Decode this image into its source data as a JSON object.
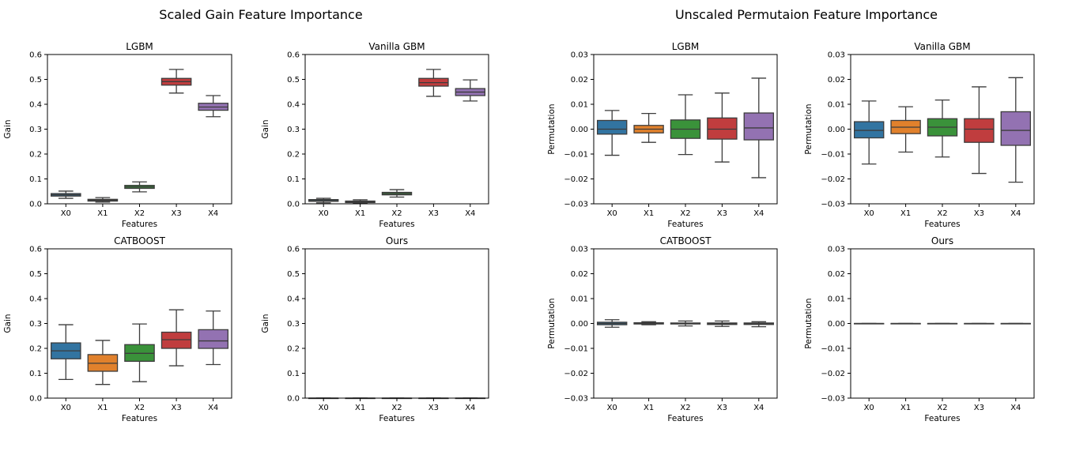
{
  "figure": {
    "suptitles": [
      "Scaled Gain Feature Importance",
      "Unscaled Permutaion Feature Importance"
    ]
  },
  "colors": {
    "X0": "#3274a1",
    "X1": "#e1812c",
    "X2": "#3a923a",
    "X3": "#c03d3e",
    "X4": "#9372b2",
    "median_line": "#3c3c3c"
  },
  "chart_data": [
    {
      "type": "box",
      "title": "LGBM",
      "xlabel": "Features",
      "ylabel": "Gain",
      "ylim": [
        0,
        0.6
      ],
      "yticks": [
        "0.0",
        "0.1",
        "0.2",
        "0.3",
        "0.4",
        "0.5",
        "0.6"
      ],
      "ytick_values": [
        0,
        0.1,
        0.2,
        0.3,
        0.4,
        0.5,
        0.6
      ],
      "categories": [
        "X0",
        "X1",
        "X2",
        "X3",
        "X4"
      ],
      "boxes": [
        {
          "min": 0.022,
          "q1": 0.031,
          "median": 0.036,
          "q3": 0.041,
          "max": 0.051
        },
        {
          "min": 0.007,
          "q1": 0.011,
          "median": 0.014,
          "q3": 0.018,
          "max": 0.025
        },
        {
          "min": 0.048,
          "q1": 0.062,
          "median": 0.068,
          "q3": 0.074,
          "max": 0.088
        },
        {
          "min": 0.445,
          "q1": 0.477,
          "median": 0.491,
          "q3": 0.504,
          "max": 0.54
        },
        {
          "min": 0.35,
          "q1": 0.376,
          "median": 0.389,
          "q3": 0.404,
          "max": 0.435
        }
      ]
    },
    {
      "type": "box",
      "title": "Vanilla GBM",
      "xlabel": "Features",
      "ylabel": "Gain",
      "ylim": [
        0,
        0.6
      ],
      "yticks": [
        "0.0",
        "0.1",
        "0.2",
        "0.3",
        "0.4",
        "0.5",
        "0.6"
      ],
      "ytick_values": [
        0,
        0.1,
        0.2,
        0.3,
        0.4,
        0.5,
        0.6
      ],
      "categories": [
        "X0",
        "X1",
        "X2",
        "X3",
        "X4"
      ],
      "boxes": [
        {
          "min": 0.004,
          "q1": 0.01,
          "median": 0.013,
          "q3": 0.017,
          "max": 0.022
        },
        {
          "min": 0.002,
          "q1": 0.005,
          "median": 0.008,
          "q3": 0.011,
          "max": 0.016
        },
        {
          "min": 0.027,
          "q1": 0.036,
          "median": 0.041,
          "q3": 0.046,
          "max": 0.057
        },
        {
          "min": 0.432,
          "q1": 0.473,
          "median": 0.487,
          "q3": 0.504,
          "max": 0.54
        },
        {
          "min": 0.413,
          "q1": 0.435,
          "median": 0.449,
          "q3": 0.463,
          "max": 0.498
        }
      ]
    },
    {
      "type": "box",
      "title": "LGBM",
      "xlabel": "Features",
      "ylabel": "Permutation",
      "ylim": [
        -0.03,
        0.03
      ],
      "yticks": [
        "−0.03",
        "−0.02",
        "−0.01",
        "0.00",
        "0.01",
        "0.02",
        "0.03"
      ],
      "ytick_values": [
        -0.03,
        -0.02,
        -0.01,
        0,
        0.01,
        0.02,
        0.03
      ],
      "categories": [
        "X0",
        "X1",
        "X2",
        "X3",
        "X4"
      ],
      "boxes": [
        {
          "min": -0.0105,
          "q1": -0.002,
          "median": 0.0,
          "q3": 0.0035,
          "max": 0.0075
        },
        {
          "min": -0.0053,
          "q1": -0.0015,
          "median": 0.0,
          "q3": 0.0015,
          "max": 0.0063
        },
        {
          "min": -0.0102,
          "q1": -0.0037,
          "median": 0.0,
          "q3": 0.0037,
          "max": 0.0138
        },
        {
          "min": -0.0132,
          "q1": -0.004,
          "median": 0.0,
          "q3": 0.0045,
          "max": 0.0145
        },
        {
          "min": -0.0195,
          "q1": -0.0043,
          "median": 0.0005,
          "q3": 0.0065,
          "max": 0.0205
        }
      ]
    },
    {
      "type": "box",
      "title": "Vanilla GBM",
      "xlabel": "Features",
      "ylabel": "Permutation",
      "ylim": [
        -0.03,
        0.03
      ],
      "yticks": [
        "−0.03",
        "−0.02",
        "−0.01",
        "0.00",
        "0.01",
        "0.02",
        "0.03"
      ],
      "ytick_values": [
        -0.03,
        -0.02,
        -0.01,
        0,
        0.01,
        0.02,
        0.03
      ],
      "categories": [
        "X0",
        "X1",
        "X2",
        "X3",
        "X4"
      ],
      "boxes": [
        {
          "min": -0.014,
          "q1": -0.0035,
          "median": -0.0005,
          "q3": 0.003,
          "max": 0.0113
        },
        {
          "min": -0.0092,
          "q1": -0.0018,
          "median": 0.0008,
          "q3": 0.0035,
          "max": 0.009
        },
        {
          "min": -0.0112,
          "q1": -0.0027,
          "median": 0.0008,
          "q3": 0.0042,
          "max": 0.0117
        },
        {
          "min": -0.0178,
          "q1": -0.0053,
          "median": 0.0,
          "q3": 0.0042,
          "max": 0.017
        },
        {
          "min": -0.0213,
          "q1": -0.0065,
          "median": -0.0005,
          "q3": 0.007,
          "max": 0.0207
        }
      ]
    },
    {
      "type": "box",
      "title": "CATBOOST",
      "xlabel": "Features",
      "ylabel": "Gain",
      "ylim": [
        0,
        0.6
      ],
      "yticks": [
        "0.0",
        "0.1",
        "0.2",
        "0.3",
        "0.4",
        "0.5",
        "0.6"
      ],
      "ytick_values": [
        0,
        0.1,
        0.2,
        0.3,
        0.4,
        0.5,
        0.6
      ],
      "categories": [
        "X0",
        "X1",
        "X2",
        "X3",
        "X4"
      ],
      "boxes": [
        {
          "min": 0.075,
          "q1": 0.158,
          "median": 0.19,
          "q3": 0.222,
          "max": 0.295
        },
        {
          "min": 0.055,
          "q1": 0.108,
          "median": 0.14,
          "q3": 0.175,
          "max": 0.232
        },
        {
          "min": 0.066,
          "q1": 0.148,
          "median": 0.18,
          "q3": 0.215,
          "max": 0.298
        },
        {
          "min": 0.13,
          "q1": 0.2,
          "median": 0.235,
          "q3": 0.265,
          "max": 0.355
        },
        {
          "min": 0.135,
          "q1": 0.2,
          "median": 0.23,
          "q3": 0.275,
          "max": 0.35
        }
      ]
    },
    {
      "type": "box",
      "title": "Ours",
      "xlabel": "Features",
      "ylabel": "Gain",
      "ylim": [
        0,
        0.6
      ],
      "yticks": [
        "0.0",
        "0.1",
        "0.2",
        "0.3",
        "0.4",
        "0.5",
        "0.6"
      ],
      "ytick_values": [
        0,
        0.1,
        0.2,
        0.3,
        0.4,
        0.5,
        0.6
      ],
      "categories": [
        "X0",
        "X1",
        "X2",
        "X3",
        "X4"
      ],
      "boxes": [
        {
          "min": 0.0,
          "q1": 0.0,
          "median": 0.0,
          "q3": 0.0,
          "max": 0.0
        },
        {
          "min": 0.0,
          "q1": 0.0,
          "median": 0.0,
          "q3": 0.0,
          "max": 0.0
        },
        {
          "min": 0.0,
          "q1": 0.0,
          "median": 0.0,
          "q3": 0.0,
          "max": 0.0
        },
        {
          "min": 0.0,
          "q1": 0.0,
          "median": 0.0,
          "q3": 0.0,
          "max": 0.0
        },
        {
          "min": 0.0,
          "q1": 0.0,
          "median": 0.0,
          "q3": 0.0,
          "max": 0.0
        }
      ]
    },
    {
      "type": "box",
      "title": "CATBOOST",
      "xlabel": "Features",
      "ylabel": "Permutation",
      "ylim": [
        -0.03,
        0.03
      ],
      "yticks": [
        "−0.03",
        "−0.02",
        "−0.01",
        "0.00",
        "0.01",
        "0.02",
        "0.03"
      ],
      "ytick_values": [
        -0.03,
        -0.02,
        -0.01,
        0,
        0.01,
        0.02,
        0.03
      ],
      "categories": [
        "X0",
        "X1",
        "X2",
        "X3",
        "X4"
      ],
      "boxes": [
        {
          "min": -0.0015,
          "q1": -0.0005,
          "median": 0.0,
          "q3": 0.0005,
          "max": 0.0015
        },
        {
          "min": -0.0005,
          "q1": -0.0002,
          "median": 0.0,
          "q3": 0.0003,
          "max": 0.0007
        },
        {
          "min": -0.001,
          "q1": -0.0002,
          "median": 0.0,
          "q3": 0.0002,
          "max": 0.001
        },
        {
          "min": -0.0012,
          "q1": -0.0004,
          "median": -0.0001,
          "q3": 0.0002,
          "max": 0.001
        },
        {
          "min": -0.0013,
          "q1": -0.0004,
          "median": -0.0001,
          "q3": 0.0002,
          "max": 0.0007
        }
      ]
    },
    {
      "type": "box",
      "title": "Ours",
      "xlabel": "Features",
      "ylabel": "Permutation",
      "ylim": [
        -0.03,
        0.03
      ],
      "yticks": [
        "−0.03",
        "−0.02",
        "−0.01",
        "0.00",
        "0.01",
        "0.02",
        "0.03"
      ],
      "ytick_values": [
        -0.03,
        -0.02,
        -0.01,
        0,
        0.01,
        0.02,
        0.03
      ],
      "categories": [
        "X0",
        "X1",
        "X2",
        "X3",
        "X4"
      ],
      "boxes": [
        {
          "min": 0.0,
          "q1": 0.0,
          "median": 0.0,
          "q3": 0.0,
          "max": 0.0
        },
        {
          "min": 0.0,
          "q1": 0.0,
          "median": 0.0,
          "q3": 0.0,
          "max": 0.0
        },
        {
          "min": 0.0,
          "q1": 0.0,
          "median": 0.0,
          "q3": 0.0,
          "max": 0.0
        },
        {
          "min": 0.0,
          "q1": 0.0,
          "median": 0.0,
          "q3": 0.0,
          "max": 0.0
        },
        {
          "min": 0.0,
          "q1": 0.0,
          "median": 0.0,
          "q3": 0.0,
          "max": 0.0
        }
      ]
    }
  ]
}
